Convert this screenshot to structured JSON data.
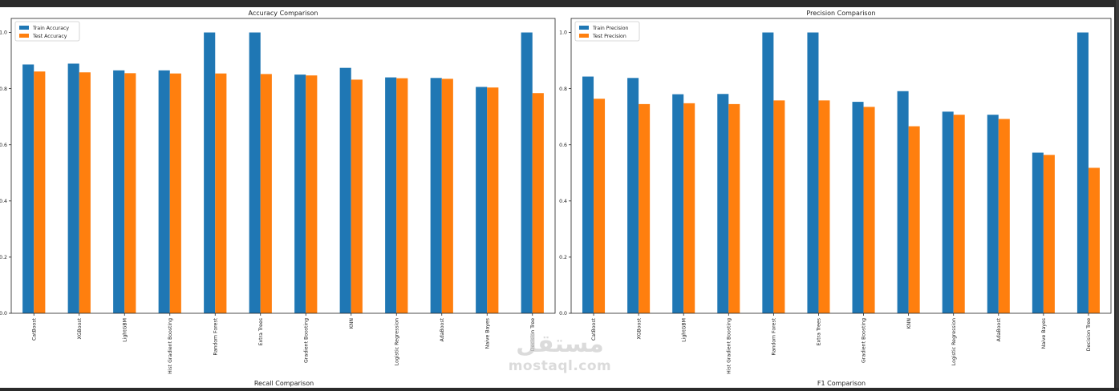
{
  "colors": {
    "train": "#1f77b4",
    "test": "#ff7f0e",
    "background": "#ffffff",
    "page_frame": "#2a2a2a"
  },
  "watermark": {
    "arabic": "مستقل",
    "latin": "mostaql.com"
  },
  "bottom_titles": {
    "left": "Recall Comparison",
    "right": "F1 Comparison"
  },
  "chart_data": [
    {
      "type": "bar",
      "title": "Accuracy Comparison",
      "categories": [
        "CatBoost",
        "XGBoost",
        "LightGBM",
        "Hist Gradient Boosting",
        "Random Forest",
        "Extra Trees",
        "Gradient Boosting",
        "KNN",
        "Logistic Regression",
        "AdaBoost",
        "Naive Bayes",
        "Decision Tree"
      ],
      "series": [
        {
          "name": "Train Accuracy",
          "values": [
            0.886,
            0.889,
            0.865,
            0.865,
            1.0,
            1.0,
            0.85,
            0.874,
            0.84,
            0.838,
            0.806,
            1.0
          ]
        },
        {
          "name": "Test Accuracy",
          "values": [
            0.861,
            0.858,
            0.855,
            0.854,
            0.854,
            0.852,
            0.847,
            0.832,
            0.837,
            0.835,
            0.804,
            0.784
          ]
        }
      ],
      "xlabel": "",
      "ylabel": "",
      "ylim": [
        0,
        1.05
      ],
      "yticks": [
        "0.0",
        "0.2",
        "0.4",
        "0.6",
        "0.8",
        "1.0"
      ],
      "legend": "top-left",
      "grid": false
    },
    {
      "type": "bar",
      "title": "Precision Comparison",
      "categories": [
        "CatBoost",
        "XGBoost",
        "LightGBM",
        "Hist Gradient Boosting",
        "Random Forest",
        "Extra Trees",
        "Gradient Boosting",
        "KNN",
        "Logistic Regression",
        "AdaBoost",
        "Naive Bayes",
        "Decision Tree"
      ],
      "series": [
        {
          "name": "Train Precision",
          "values": [
            0.843,
            0.838,
            0.78,
            0.781,
            1.0,
            1.0,
            0.753,
            0.791,
            0.718,
            0.707,
            0.572,
            1.0
          ]
        },
        {
          "name": "Test Precision",
          "values": [
            0.764,
            0.745,
            0.748,
            0.745,
            0.758,
            0.758,
            0.735,
            0.666,
            0.707,
            0.692,
            0.564,
            0.518
          ]
        }
      ],
      "xlabel": "",
      "ylabel": "",
      "ylim": [
        0,
        1.05
      ],
      "yticks": [
        "0.0",
        "0.2",
        "0.4",
        "0.6",
        "0.8",
        "1.0"
      ],
      "legend": "top-left",
      "grid": false
    }
  ]
}
